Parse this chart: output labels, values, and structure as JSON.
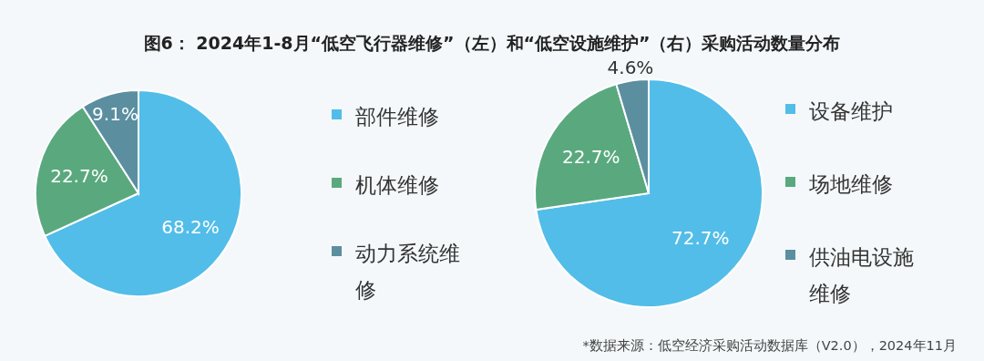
{
  "chart_data": [
    {
      "type": "pie",
      "title": "图6：  2024年1-8月“低空飞行器维修”（左）和“低空设施维护”（右）采购活动数量分布",
      "categories": [
        "部件维修",
        "机体维修",
        "动力系统维修"
      ],
      "values": [
        68.2,
        22.7,
        9.1
      ],
      "value_labels": [
        "68.2%",
        "22.7%",
        "9.1%"
      ],
      "colors": [
        "#52bde8",
        "#5aa97e",
        "#5b8fa0"
      ],
      "legend": "right"
    },
    {
      "type": "pie",
      "categories": [
        "设备维护",
        "场地维修",
        "供油电设施维修"
      ],
      "values": [
        72.7,
        22.7,
        4.6
      ],
      "value_labels": [
        "72.7%",
        "22.7%",
        "4.6%"
      ],
      "colors": [
        "#52bde8",
        "#5aa97e",
        "#5b8fa0"
      ],
      "legend": "right",
      "annotations": [
        "*数据来源：低空经济采购活动数据库（V2.0），2024年11月"
      ]
    }
  ]
}
